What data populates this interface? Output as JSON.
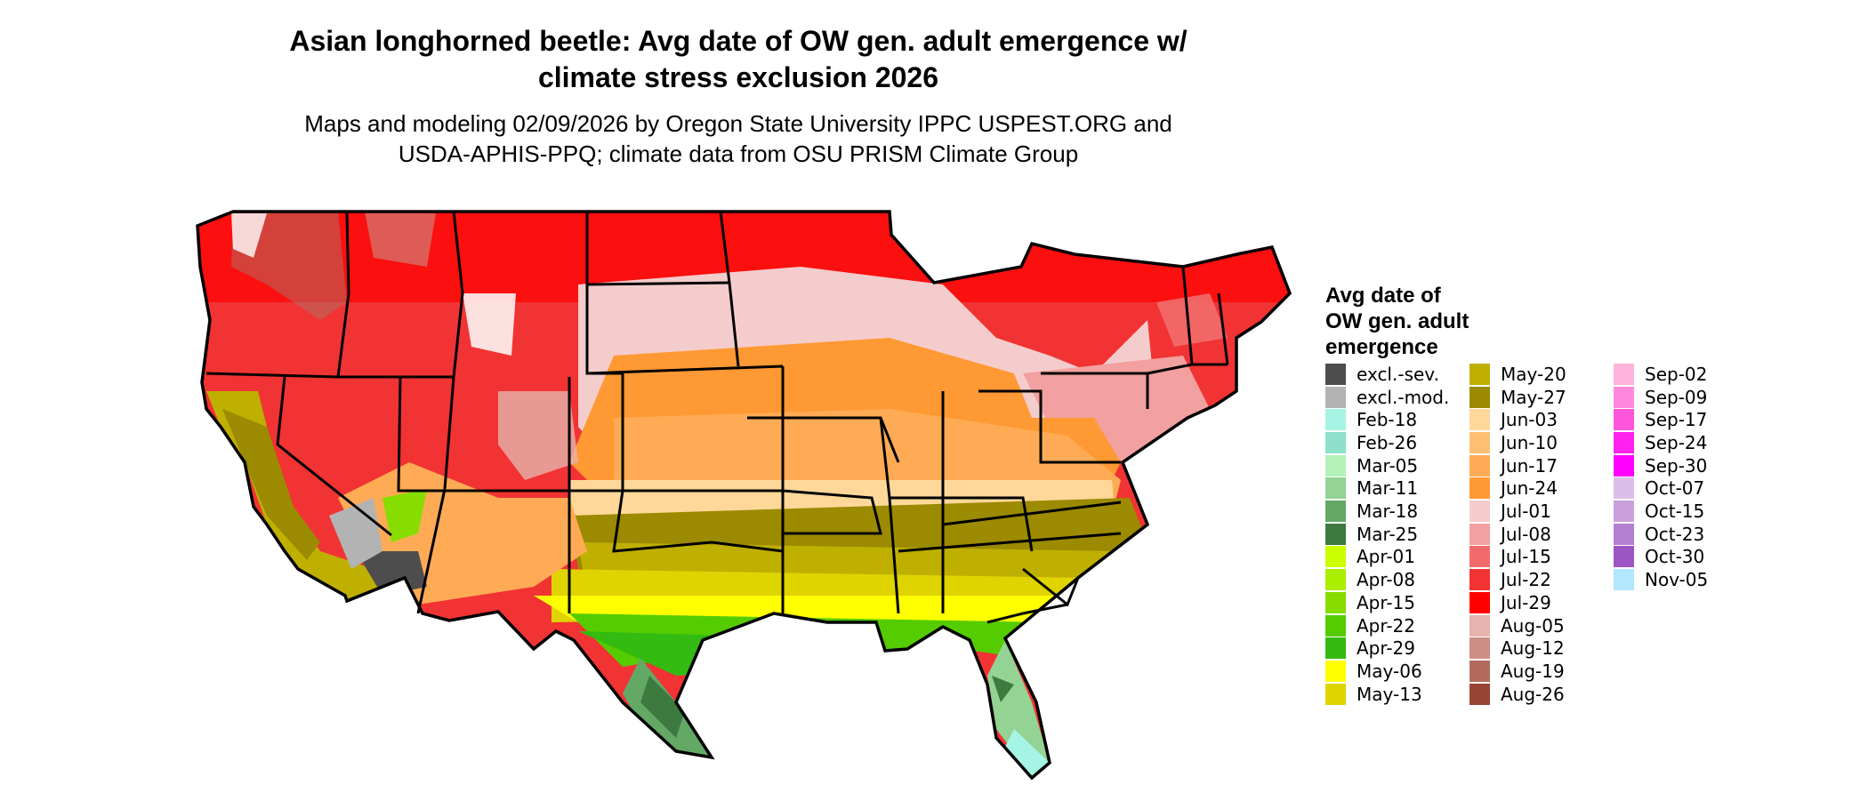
{
  "title": "Asian longhorned beetle: Avg date of OW gen. adult emergence w/ climate stress exclusion 2026",
  "title_line1": "Asian longhorned beetle: Avg date of OW gen. adult emergence w/",
  "title_line2": "climate stress exclusion 2026",
  "subtitle_line1": "Maps and modeling 02/09/2026 by Oregon State University IPPC USPEST.ORG and",
  "subtitle_line2": "USDA-APHIS-PPQ; climate data from OSU PRISM Climate Group",
  "legend": {
    "title": "Avg date of\nOW gen. adult\nemergence",
    "items": [
      {
        "label": "excl.-sev.",
        "color": "#4d4d4d"
      },
      {
        "label": "excl.-mod.",
        "color": "#b3b3b3"
      },
      {
        "label": "Feb-18",
        "color": "#a6f4e4"
      },
      {
        "label": "Feb-26",
        "color": "#8ce0cc"
      },
      {
        "label": "Mar-05",
        "color": "#b3f2b8"
      },
      {
        "label": "Mar-11",
        "color": "#93d393"
      },
      {
        "label": "Mar-18",
        "color": "#63a865"
      },
      {
        "label": "Mar-25",
        "color": "#3d7a40"
      },
      {
        "label": "Apr-01",
        "color": "#ccff00"
      },
      {
        "label": "Apr-08",
        "color": "#aaee00"
      },
      {
        "label": "Apr-15",
        "color": "#88dd00"
      },
      {
        "label": "Apr-22",
        "color": "#55cc00"
      },
      {
        "label": "Apr-29",
        "color": "#33bb11"
      },
      {
        "label": "May-06",
        "color": "#ffff00"
      },
      {
        "label": "May-13",
        "color": "#e0d400"
      },
      {
        "label": "May-20",
        "color": "#bfb000"
      },
      {
        "label": "May-27",
        "color": "#9c8a00"
      },
      {
        "label": "Jun-03",
        "color": "#ffd899"
      },
      {
        "label": "Jun-10",
        "color": "#ffbf73"
      },
      {
        "label": "Jun-17",
        "color": "#ffab55"
      },
      {
        "label": "Jun-24",
        "color": "#ff9933"
      },
      {
        "label": "Jul-01",
        "color": "#f5cccc"
      },
      {
        "label": "Jul-08",
        "color": "#f2a0a0"
      },
      {
        "label": "Jul-15",
        "color": "#f26b6b"
      },
      {
        "label": "Jul-22",
        "color": "#f23333"
      },
      {
        "label": "Jul-29",
        "color": "#ff0000"
      },
      {
        "label": "Aug-05",
        "color": "#e6b3ad"
      },
      {
        "label": "Aug-12",
        "color": "#cc8f85"
      },
      {
        "label": "Aug-19",
        "color": "#b36b5e"
      },
      {
        "label": "Aug-26",
        "color": "#994433"
      },
      {
        "label": "Sep-02",
        "color": "#ffb3dd"
      },
      {
        "label": "Sep-09",
        "color": "#ff88dd"
      },
      {
        "label": "Sep-17",
        "color": "#ff55dd"
      },
      {
        "label": "Sep-24",
        "color": "#ff22ee"
      },
      {
        "label": "Sep-30",
        "color": "#ff00ff"
      },
      {
        "label": "Oct-07",
        "color": "#dcbfe8"
      },
      {
        "label": "Oct-15",
        "color": "#c99fdc"
      },
      {
        "label": "Oct-23",
        "color": "#b37fd0"
      },
      {
        "label": "Oct-30",
        "color": "#9c55c4"
      },
      {
        "label": "Nov-05",
        "color": "#b3e6ff"
      }
    ]
  }
}
